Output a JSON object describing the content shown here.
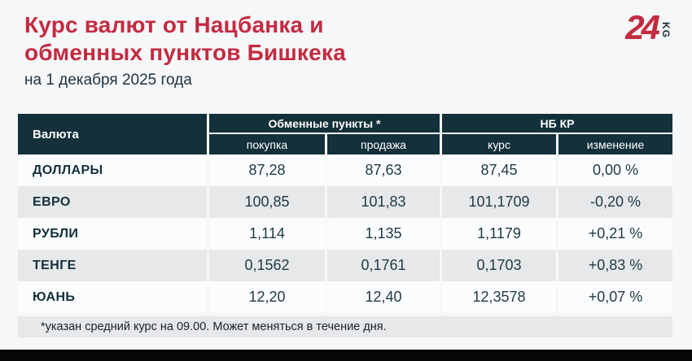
{
  "header": {
    "title_line1": "Курс валют от Нацбанка и",
    "title_line2": "обменных пунктов Бишкека",
    "subtitle": "на 1 декабря 2025 года"
  },
  "logo": {
    "number": "24",
    "suffix": "KG"
  },
  "table": {
    "col_currency": "Валюта",
    "group_exchange": "Обменные пункты *",
    "group_nbkr": "НБ КР",
    "col_buy": "покупка",
    "col_sell": "продажа",
    "col_rate": "курс",
    "col_change": "изменение",
    "rows": [
      {
        "name": "ДОЛЛАРЫ",
        "buy": "87,28",
        "sell": "87,63",
        "rate": "87,45",
        "change": "0,00 %"
      },
      {
        "name": "ЕВРО",
        "buy": "100,85",
        "sell": "101,83",
        "rate": "101,1709",
        "change": "-0,20 %"
      },
      {
        "name": "РУБЛИ",
        "buy": "1,114",
        "sell": "1,135",
        "rate": "1,1179",
        "change": "+0,21 %"
      },
      {
        "name": "ТЕНГЕ",
        "buy": "0,1562",
        "sell": "0,1761",
        "rate": "0,1703",
        "change": "+0,83 %"
      },
      {
        "name": "ЮАНЬ",
        "buy": "12,20",
        "sell": "12,40",
        "rate": "12,3578",
        "change": "+0,07 %"
      }
    ]
  },
  "footnote": {
    "text": "*указан средний курс на 09.00. Может меняться в течение дня."
  },
  "colors": {
    "accent_red": "#c32b41",
    "header_dark": "#14303a",
    "row_gray": "#e6e8ea",
    "row_light": "#fbfcfd",
    "text_dark": "#13303c"
  },
  "chart_data": {
    "type": "table",
    "title": "Курс валют от Нацбанка и обменных пунктов Бишкека",
    "subtitle": "на 1 декабря 2025 года",
    "column_groups": [
      "Обменные пункты *",
      "НБ КР"
    ],
    "columns": [
      "Валюта",
      "покупка",
      "продажа",
      "курс",
      "изменение"
    ],
    "rows": [
      [
        "ДОЛЛАРЫ",
        87.28,
        87.63,
        87.45,
        "0,00 %"
      ],
      [
        "ЕВРО",
        100.85,
        101.83,
        101.1709,
        "-0,20 %"
      ],
      [
        "РУБЛИ",
        1.114,
        1.135,
        1.1179,
        "+0,21 %"
      ],
      [
        "ТЕНГЕ",
        0.1562,
        0.1761,
        0.1703,
        "+0,83 %"
      ],
      [
        "ЮАНЬ",
        12.2,
        12.4,
        12.3578,
        "+0,07 %"
      ]
    ],
    "footnote": "*указан средний курс на 09.00. Может меняться в течение дня."
  }
}
